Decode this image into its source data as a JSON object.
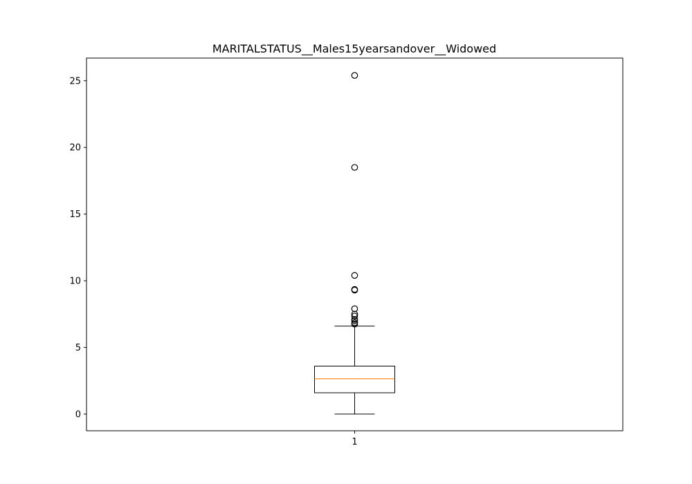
{
  "chart_data": {
    "type": "box",
    "title": "MARITALSTATUS__Males15yearsandover__Widowed",
    "xlabel": "",
    "ylabel": "",
    "categories": [
      "1"
    ],
    "ylim": [
      -1.25,
      26.7
    ],
    "yticks": [
      0,
      5,
      10,
      15,
      20,
      25
    ],
    "grid": false,
    "boxes": [
      {
        "category": "1",
        "whisker_low": 0.0,
        "q1": 1.6,
        "median": 2.65,
        "q3": 3.6,
        "whisker_high": 6.6,
        "outliers": [
          6.75,
          6.85,
          7.0,
          7.1,
          7.35,
          7.5,
          7.9,
          9.3,
          9.35,
          10.4,
          18.5,
          25.4
        ]
      }
    ],
    "colors": {
      "box": "#000000",
      "median": "#ff7f0e",
      "outlier": "#000000"
    }
  }
}
